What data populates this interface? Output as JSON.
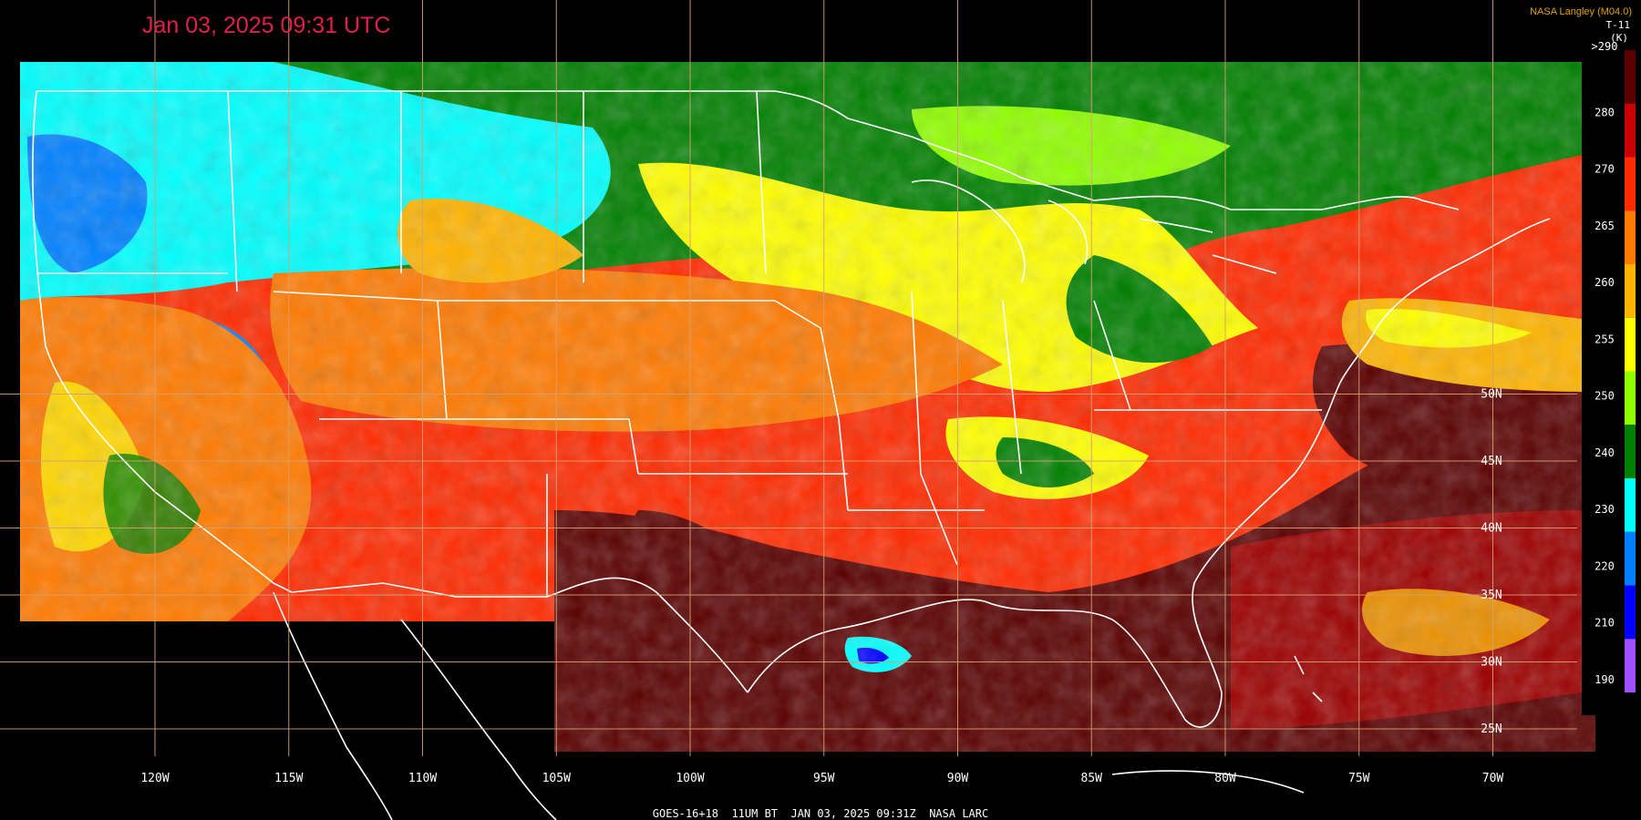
{
  "header": {
    "timestamp": "Jan 03, 2025 09:31 UTC",
    "credit": "NASA Langley (M04.0)",
    "product": "T-11",
    "unit": "(K)"
  },
  "footer": {
    "caption": "GOES-16+18  11UM BT  JAN 03, 2025 09:31Z  NASA LARC"
  },
  "axes": {
    "longitude_labels": [
      "120W",
      "115W",
      "110W",
      "105W",
      "100W",
      "95W",
      "90W",
      "85W",
      "80W",
      "75W",
      "70W"
    ],
    "longitudes": [
      -120,
      -115,
      -110,
      -105,
      -100,
      -95,
      -90,
      -85,
      -80,
      -75,
      -70
    ],
    "latitude_labels": [
      "50N",
      "45N",
      "40N",
      "35N",
      "30N",
      "25N"
    ],
    "latitudes": [
      50,
      45,
      40,
      35,
      30,
      25
    ]
  },
  "colorbar": {
    "labels": [
      ">290",
      "280",
      "270",
      "265",
      "260",
      "255",
      "250",
      "240",
      "230",
      "220",
      "210",
      "190"
    ],
    "colors": [
      "#5a0000",
      "#c80000",
      "#ff2a00",
      "#ff7a00",
      "#ffb400",
      "#ffff00",
      "#90ff00",
      "#008000",
      "#00ffff",
      "#0080ff",
      "#0000ff",
      "#a050ff"
    ]
  },
  "colors": {
    "grid": "#d8a070",
    "borders": "#ffffff",
    "cold_highlight": "#00ffff",
    "warm_highlight": "#5a0000"
  }
}
